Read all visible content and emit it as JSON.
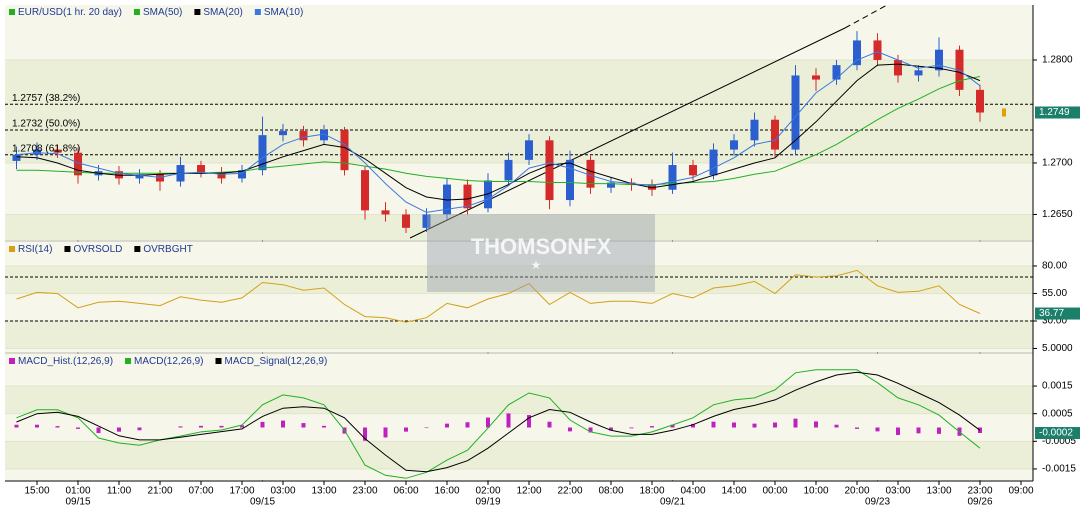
{
  "chart_data": [
    {
      "type": "candlestick",
      "title": "EUR/USD(1 hr.  20 day)",
      "legend_color": "#22b022",
      "categories": [
        null,
        "15:00",
        null,
        "01:00",
        null,
        "11:00",
        null,
        "21:00",
        null,
        "07:00",
        null,
        "17:00",
        null,
        "03:00",
        null,
        "13:00",
        null,
        "23:00",
        null,
        "06:00",
        null,
        "16:00",
        null,
        "02:00",
        null,
        "12:00",
        null,
        "22:00",
        null,
        "08:00",
        null,
        "18:00",
        null,
        "04:00",
        null,
        "14:00",
        null,
        "00:00",
        null,
        "10:00",
        null,
        "20:00",
        null,
        "03:00",
        null,
        "13:00",
        null,
        "23:00",
        null,
        "09:00"
      ],
      "date_labels": [
        null,
        null,
        null,
        "09/15",
        null,
        null,
        null,
        null,
        null,
        null,
        null,
        null,
        "09/15",
        null,
        null,
        null,
        null,
        null,
        null,
        null,
        null,
        null,
        null,
        "09/19",
        null,
        null,
        null,
        null,
        null,
        null,
        null,
        null,
        "09/21",
        null,
        null,
        null,
        null,
        null,
        null,
        null,
        null,
        null,
        "09/23",
        null,
        null,
        null,
        null,
        "09/26",
        null,
        null
      ],
      "open": [
        1.2702,
        1.2708,
        1.2713,
        1.271,
        1.2688,
        1.2692,
        1.2685,
        1.2689,
        1.2682,
        1.2698,
        1.2691,
        1.2685,
        1.2693,
        1.2727,
        1.2731,
        1.2722,
        1.2732,
        1.2693,
        1.2654,
        1.265,
        1.2637,
        1.265,
        1.2679,
        1.2656,
        1.2683,
        1.2703,
        1.2722,
        1.2664,
        1.2703,
        1.2676,
        1.2681,
        1.2679,
        1.2674,
        1.2698,
        1.2688,
        1.2713,
        1.2722,
        1.2742,
        1.2713,
        1.2785,
        1.2781,
        1.2795,
        1.2819,
        1.28,
        1.2785,
        1.279,
        1.281,
        1.2771,
        null,
        null
      ],
      "high": [
        1.2716,
        1.272,
        1.2718,
        1.2715,
        1.2698,
        1.2697,
        1.2694,
        1.2693,
        1.2706,
        1.2702,
        1.2696,
        1.2698,
        1.2745,
        1.2738,
        1.2736,
        1.2737,
        1.2735,
        1.2697,
        1.2662,
        1.2655,
        1.2656,
        1.2685,
        1.2684,
        1.269,
        1.271,
        1.2728,
        1.2726,
        1.2712,
        1.2707,
        1.2686,
        1.2685,
        1.2684,
        1.271,
        1.2703,
        1.2719,
        1.2728,
        1.2749,
        1.2746,
        1.2795,
        1.2792,
        1.28,
        1.2828,
        1.2826,
        1.2805,
        1.2795,
        1.2822,
        1.2814,
        1.2776,
        null,
        null
      ],
      "low": [
        1.2694,
        1.2703,
        1.2705,
        1.268,
        1.2683,
        1.2679,
        1.268,
        1.2673,
        1.2677,
        1.2686,
        1.268,
        1.2681,
        1.2688,
        1.2721,
        1.2716,
        1.2718,
        1.2688,
        1.2645,
        1.2643,
        1.2632,
        1.2633,
        1.2645,
        1.265,
        1.2652,
        1.2678,
        1.2698,
        1.2655,
        1.2658,
        1.267,
        1.2671,
        1.2673,
        1.2668,
        1.267,
        1.2683,
        1.2684,
        1.2707,
        1.2716,
        1.2706,
        1.2708,
        1.277,
        1.2776,
        1.279,
        1.2794,
        1.2778,
        1.2779,
        1.2784,
        1.2765,
        1.274,
        null,
        null
      ],
      "close": [
        1.2708,
        1.2713,
        1.271,
        1.2688,
        1.2692,
        1.2685,
        1.2689,
        1.2682,
        1.2698,
        1.2691,
        1.2685,
        1.2693,
        1.2727,
        1.2731,
        1.2722,
        1.2732,
        1.2693,
        1.2654,
        1.265,
        1.2637,
        1.265,
        1.2679,
        1.2656,
        1.2683,
        1.2703,
        1.2722,
        1.2664,
        1.2703,
        1.2676,
        1.2681,
        1.2679,
        1.2674,
        1.2698,
        1.2688,
        1.2713,
        1.2722,
        1.2742,
        1.2713,
        1.2785,
        1.2781,
        1.2795,
        1.2819,
        1.28,
        1.2785,
        1.279,
        1.281,
        1.2771,
        1.2749,
        null,
        null
      ],
      "up_color": "#2b5fd0",
      "down_color": "#d42a2a",
      "tag_color": "#1b7f6a",
      "series": [
        {
          "name": "SMA(50)",
          "color": "#22b022",
          "values": [
            1.2693,
            1.2693,
            1.2692,
            1.2691,
            1.269,
            1.269,
            1.269,
            1.269,
            1.269,
            1.269,
            1.2691,
            1.2692,
            1.2695,
            1.2697,
            1.2699,
            1.2701,
            1.27,
            1.2697,
            1.2694,
            1.269,
            1.2687,
            1.2685,
            1.2683,
            1.2682,
            1.2682,
            1.2682,
            1.2681,
            1.2681,
            1.268,
            1.268,
            1.2679,
            1.2679,
            1.268,
            1.2681,
            1.2682,
            1.2685,
            1.2689,
            1.2692,
            1.27,
            1.2708,
            1.2718,
            1.273,
            1.2742,
            1.2753,
            1.2762,
            1.2772,
            1.278,
            1.2784,
            null,
            null
          ]
        },
        {
          "name": "SMA(20)",
          "color": "#000000",
          "values": [
            1.2706,
            1.2705,
            1.27,
            1.2693,
            1.269,
            1.2688,
            1.2688,
            1.2689,
            1.269,
            1.269,
            1.269,
            1.2692,
            1.2699,
            1.2706,
            1.2712,
            1.2718,
            1.2715,
            1.2704,
            1.269,
            1.2676,
            1.2667,
            1.2664,
            1.2665,
            1.267,
            1.2679,
            1.269,
            1.2698,
            1.27,
            1.2692,
            1.2686,
            1.268,
            1.2676,
            1.2679,
            1.2682,
            1.2688,
            1.2694,
            1.27,
            1.2705,
            1.2722,
            1.274,
            1.276,
            1.278,
            1.2795,
            1.2796,
            1.2794,
            1.2792,
            1.2788,
            1.278,
            null,
            null
          ]
        },
        {
          "name": "SMA(10)",
          "color": "#3a78e0",
          "values": [
            1.2708,
            1.271,
            1.2709,
            1.27,
            1.2695,
            1.269,
            1.2688,
            1.2686,
            1.269,
            1.2691,
            1.2689,
            1.269,
            1.2705,
            1.2718,
            1.2725,
            1.2728,
            1.2718,
            1.27,
            1.268,
            1.2662,
            1.2652,
            1.2655,
            1.2658,
            1.2665,
            1.2678,
            1.2695,
            1.27,
            1.2695,
            1.2688,
            1.2682,
            1.268,
            1.2678,
            1.2682,
            1.2686,
            1.2695,
            1.2705,
            1.2718,
            1.2722,
            1.2745,
            1.2768,
            1.2782,
            1.28,
            1.2808,
            1.28,
            1.2792,
            1.2795,
            1.279,
            1.2775,
            null,
            null
          ]
        }
      ],
      "levels": [
        {
          "value": 1.2757,
          "label": "1.2757 (38.2%)"
        },
        {
          "value": 1.2732,
          "label": "1.2732 (50.0%)"
        },
        {
          "value": 1.2708,
          "label": "1.2708 (61.8%)"
        }
      ],
      "ylim": [
        1.26252,
        1.28534
      ],
      "yticks": [
        {
          "value": 1.28,
          "label": "1.2800"
        },
        {
          "value": 1.27,
          "label": "1.2700"
        },
        {
          "value": 1.265,
          "label": "1.2650"
        }
      ],
      "watermark": "THOMSONFX"
    },
    {
      "type": "line",
      "tag_color": "#1b7f6a",
      "series": [
        {
          "name": "RSI(14)",
          "color": "#d4a017",
          "values": [
            50,
            56,
            55,
            42,
            47,
            48,
            46,
            44,
            52,
            49,
            47,
            51,
            65,
            63,
            58,
            60,
            45,
            34,
            33,
            29,
            33,
            46,
            42,
            50,
            55,
            64,
            45,
            56,
            46,
            48,
            48,
            46,
            55,
            51,
            60,
            62,
            66,
            55,
            72,
            70,
            71,
            76,
            62,
            56,
            57,
            62,
            45,
            36.77,
            null,
            null
          ]
        }
      ],
      "levels": [
        {
          "name": "OVRSOLD",
          "value": 30,
          "color": "#000000"
        },
        {
          "name": "OVRBGHT",
          "value": 70,
          "color": "#000000"
        }
      ],
      "ylim": [
        1.8,
        101.8
      ],
      "yticks": [
        {
          "value": 80,
          "label": "80.00"
        },
        {
          "value": 55,
          "label": "55.00"
        },
        {
          "value": 30,
          "label": "30.00"
        },
        {
          "value": 5,
          "label": "5.0000"
        }
      ]
    },
    {
      "type": "macd",
      "tag_color": "#1b7f6a",
      "series": [
        {
          "name": "MACD_Hist.(12,26,9)",
          "color": "#c020c0",
          "kind": "bar",
          "values": [
            0.0001,
            0.0001,
            5e-05,
            -5e-05,
            -0.0002,
            -0.00015,
            -0.0001,
            0,
            4e-05,
            6e-05,
            6e-05,
            8e-05,
            0.0002,
            0.00025,
            0.00016,
            6e-05,
            -0.00022,
            -0.00048,
            -0.00036,
            -0.00015,
            -2e-05,
            0.00014,
            0.00019,
            0.00036,
            0.00051,
            0.00045,
            0.00021,
            -0.00014,
            -0.00018,
            -0.00011,
            -3e-05,
            5e-05,
            0.0001,
            0.00013,
            0.00021,
            0.00018,
            0.00014,
            0.00018,
            0.00032,
            0.00022,
            0.0001,
            -5e-05,
            -0.00014,
            -0.00027,
            -0.00021,
            -0.00023,
            -0.0003,
            -0.0002,
            null,
            null
          ]
        },
        {
          "name": "MACD(12,26,9)",
          "color": "#22b022",
          "values": [
            0.00035,
            0.00064,
            0.00064,
            0.00035,
            -0.00038,
            -0.00056,
            -0.00064,
            -0.00045,
            -0.00031,
            -0.00016,
            -9e-05,
            9e-05,
            0.00082,
            0.00118,
            0.00107,
            0.00082,
            -9e-05,
            -0.00136,
            -0.00173,
            -0.00184,
            -0.00162,
            -0.00118,
            -0.00082,
            -2e-05,
            0.00082,
            0.00125,
            0.00107,
            0.00027,
            -0.00016,
            -0.00031,
            -0.00031,
            -0.00016,
            9e-05,
            0.00035,
            0.00082,
            0.001,
            0.00107,
            0.00136,
            0.00198,
            0.00209,
            0.00209,
            0.00209,
            0.00162,
            0.00107,
            0.00082,
            0.00045,
            -0.00016,
            -0.00075,
            null,
            null
          ]
        },
        {
          "name": "MACD_Signal(12,26,9)",
          "color": "#000000",
          "values": [
            0.0002,
            0.0005,
            0.00055,
            0.0004,
            5e-05,
            -0.0003,
            -0.00045,
            -0.00045,
            -0.00035,
            -0.00025,
            -0.00015,
            -5e-05,
            0.0004,
            0.0007,
            0.00075,
            0.0007,
            0.00035,
            -0.0004,
            -0.001,
            -0.00155,
            -0.0016,
            -0.00145,
            -0.0012,
            -0.00075,
            -0.0002,
            0.00035,
            0.00065,
            0.00055,
            0.0002,
            -0.0001,
            -0.00025,
            -0.00025,
            -0.0001,
            0.0001,
            0.0004,
            0.00065,
            0.0008,
            0.001,
            0.00135,
            0.00165,
            0.0019,
            0.002,
            0.0019,
            0.0016,
            0.00125,
            0.0009,
            0.00045,
            -0.0001,
            null,
            null
          ]
        }
      ],
      "ylim": [
        -0.0019,
        0.00266
      ],
      "yticks": [
        0.0015,
        0.0005,
        -0.0005,
        -0.0015
      ]
    }
  ]
}
